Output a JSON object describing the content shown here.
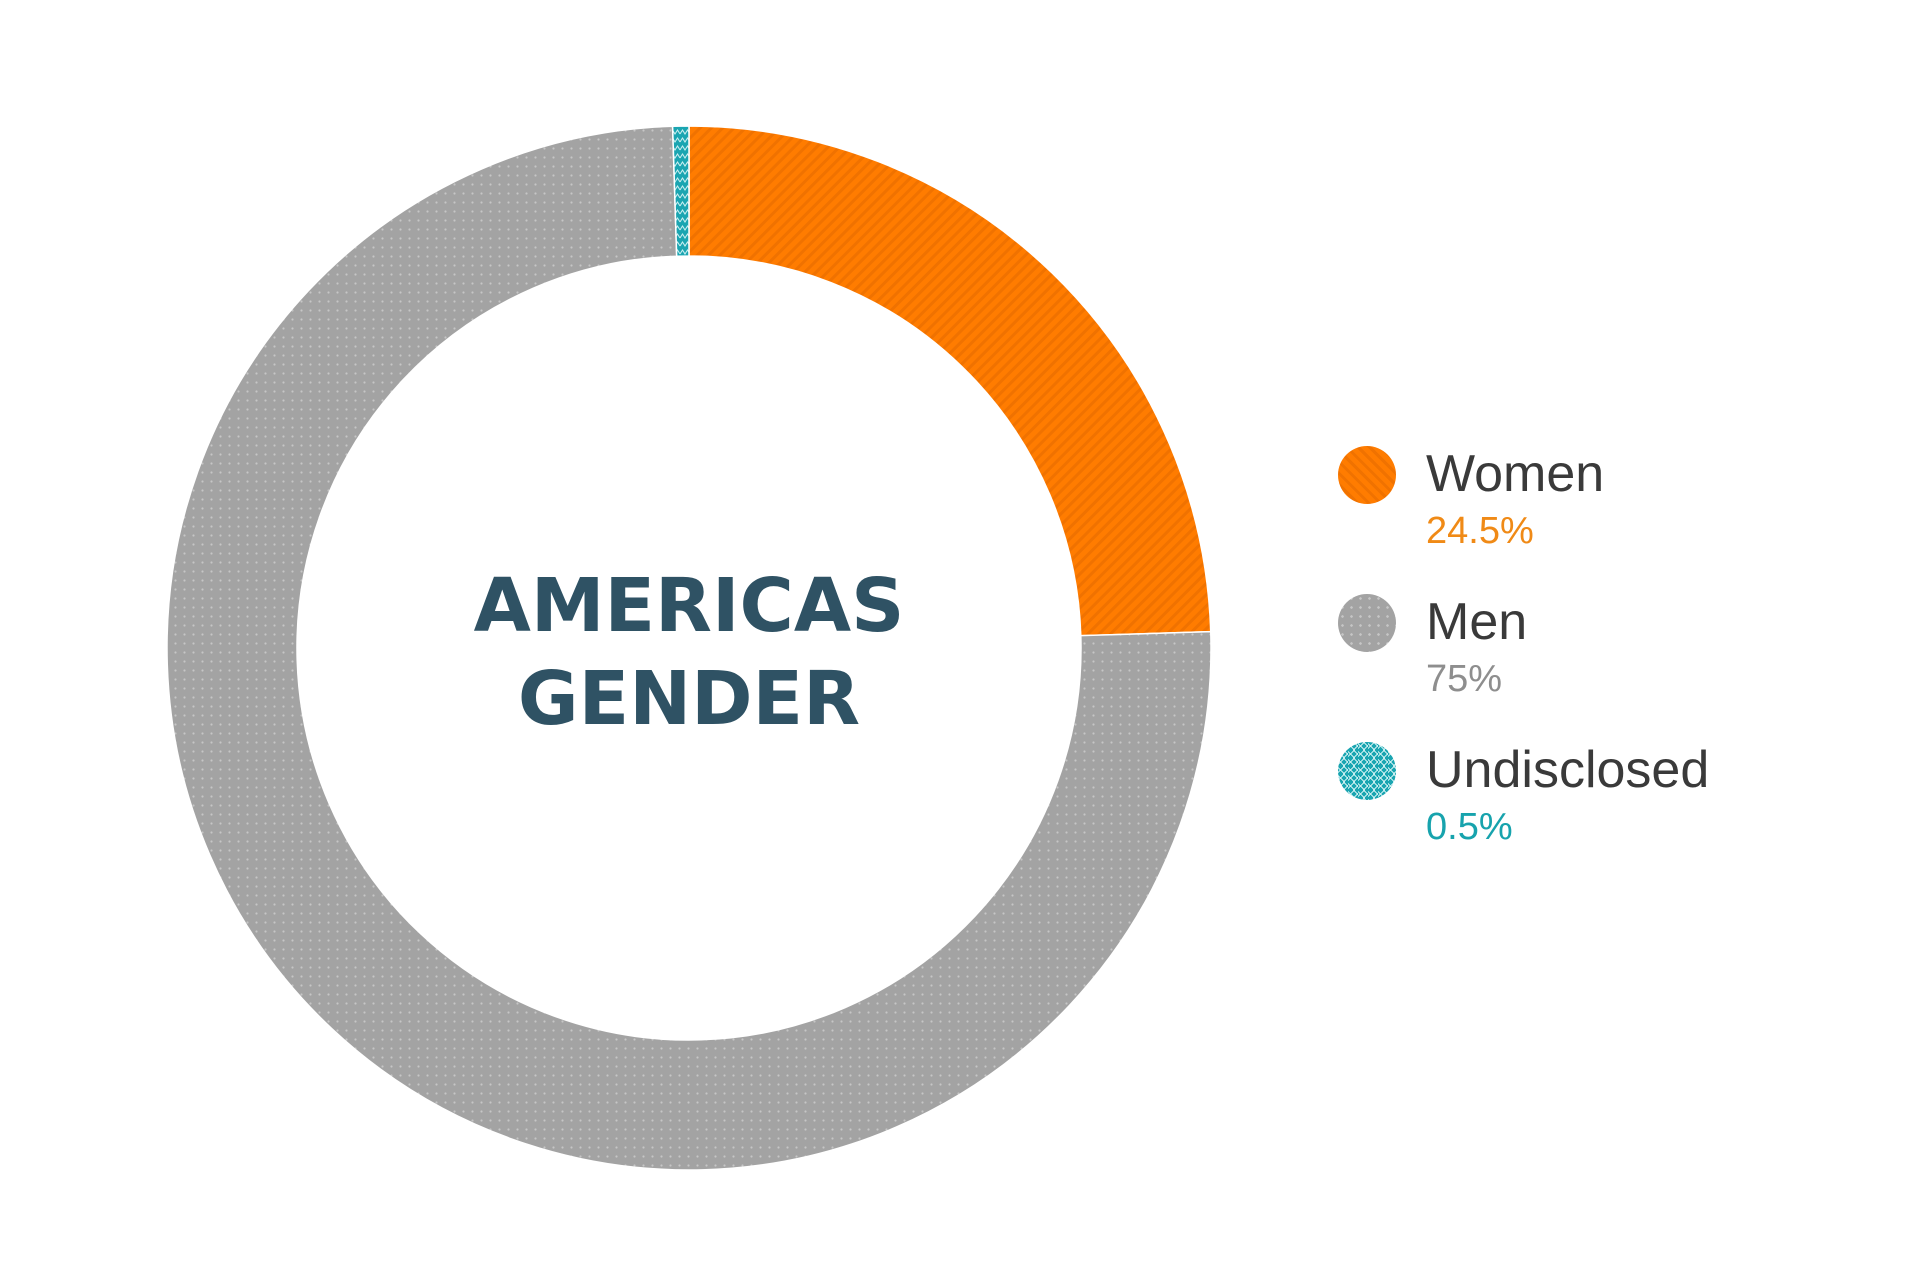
{
  "chart_data": {
    "type": "pie",
    "title": [
      "AMERICAS",
      "GENDER"
    ],
    "categories": [
      "Women",
      "Men",
      "Undisclosed"
    ],
    "values": [
      24.5,
      75,
      0.5
    ],
    "value_labels": [
      "24.5%",
      "75%",
      "0.5%"
    ],
    "colors": [
      "#ff7c00",
      "#a3a3a3",
      "#1aa5b1"
    ],
    "value_text_colors": [
      "#f08a16",
      "#8e8e8e",
      "#17a3ad"
    ],
    "patterns": [
      "diagonal-stripes",
      "dots",
      "zigzag"
    ],
    "legend_position": "right",
    "donut": true
  }
}
